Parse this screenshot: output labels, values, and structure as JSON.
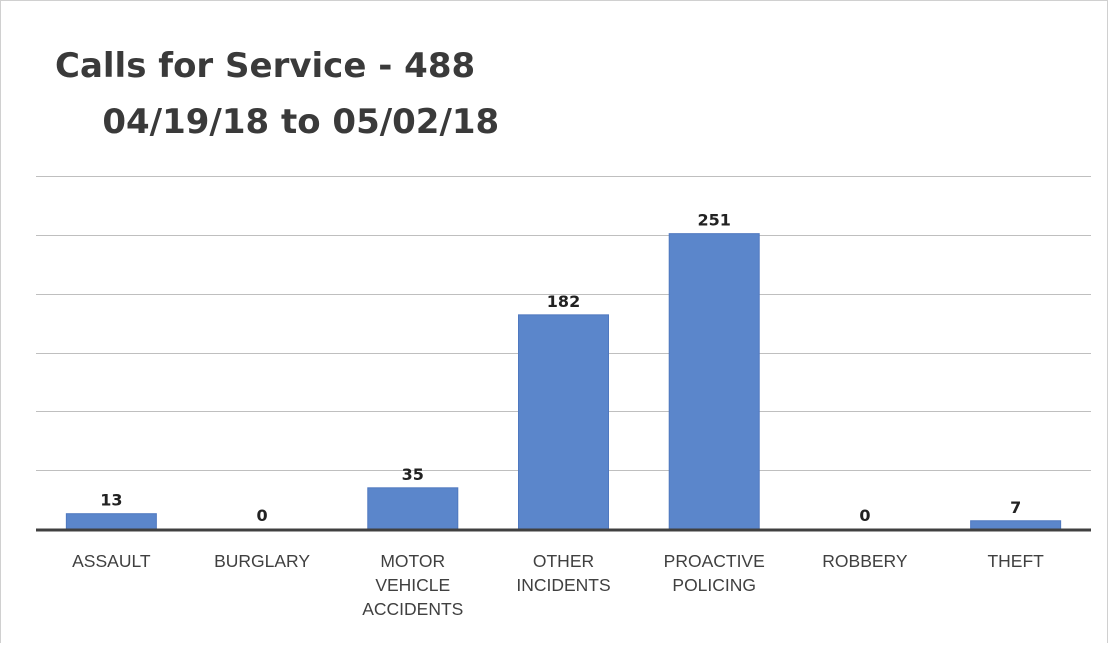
{
  "chart_data": {
    "type": "bar",
    "title": "Calls for Service - 488\n    04/19/18 to 05/02/18",
    "categories": [
      [
        "ASSAULT"
      ],
      [
        "BURGLARY"
      ],
      [
        "MOTOR",
        "VEHICLE",
        "ACCIDENTS"
      ],
      [
        "OTHER",
        "INCIDENTS"
      ],
      [
        "PROACTIVE",
        "POLICING"
      ],
      [
        "ROBBERY"
      ],
      [
        "THEFT"
      ]
    ],
    "values": [
      13,
      0,
      35,
      182,
      251,
      0,
      7
    ],
    "ylim": [
      0,
      300
    ],
    "grid": true,
    "bar_color": "#5b86cb",
    "xlabel": "",
    "ylabel": ""
  }
}
